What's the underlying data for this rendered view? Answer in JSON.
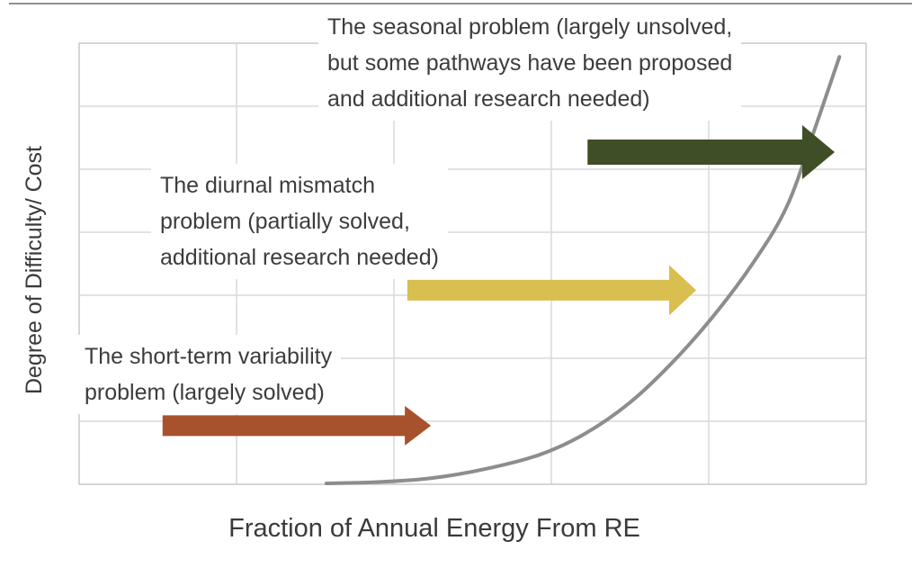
{
  "page": {
    "background": "#ffffff",
    "top_divider_color": "#8f8f8f"
  },
  "chart_data": {
    "type": "line",
    "title": "",
    "xlabel": "Fraction of Annual Energy From RE",
    "ylabel": "Degree of Difficulty/ Cost",
    "x_axis": {
      "range": [
        0,
        1
      ],
      "tick_labels": "none"
    },
    "y_axis": {
      "range": [
        0,
        1
      ],
      "tick_labels": "none"
    },
    "legend": "none",
    "grid": {
      "visible": true,
      "cols": 5,
      "rows": 7,
      "color": "#d9d9d9",
      "border_color": "#c9c9c9"
    },
    "curve": {
      "name": "degree of difficulty/cost vs fraction of annual energy from RE",
      "color": "#8d8d8d",
      "stroke_width": 4,
      "points": [
        [
          0.314,
          0.002
        ],
        [
          0.379,
          0.005
        ],
        [
          0.448,
          0.014
        ],
        [
          0.517,
          0.035
        ],
        [
          0.585,
          0.067
        ],
        [
          0.642,
          0.114
        ],
        [
          0.699,
          0.184
        ],
        [
          0.751,
          0.271
        ],
        [
          0.802,
          0.373
        ],
        [
          0.854,
          0.496
        ],
        [
          0.899,
          0.629
        ],
        [
          0.934,
          0.802
        ],
        [
          0.966,
          0.969
        ]
      ]
    },
    "annotations": [
      {
        "id": "short-term-variability-problem",
        "lines": [
          "The short-term variability",
          "problem (largely solved)"
        ],
        "arrow": {
          "color": "#a8512d",
          "f_start": 0.106,
          "f_end": 0.447,
          "difficulty": 0.133,
          "body_h": 23,
          "head_len": 29,
          "head_h": 44
        }
      },
      {
        "id": "diurnal-mismatch-problem",
        "lines": [
          "The diurnal mismatch",
          "problem (partially solved,",
          "additional research needed)"
        ],
        "arrow": {
          "color": "#d9be50",
          "f_start": 0.417,
          "f_end": 0.784,
          "difficulty": 0.44,
          "body_h": 23,
          "head_len": 30,
          "head_h": 56
        }
      },
      {
        "id": "seasonal-problem",
        "lines": [
          "The seasonal problem (largely unsolved,",
          "but some pathways have been proposed",
          "and additional research needed)"
        ],
        "arrow": {
          "color": "#3f4e26",
          "f_start": 0.646,
          "f_end": 0.96,
          "difficulty": 0.753,
          "body_h": 28,
          "head_len": 36,
          "head_h": 60
        }
      }
    ]
  }
}
